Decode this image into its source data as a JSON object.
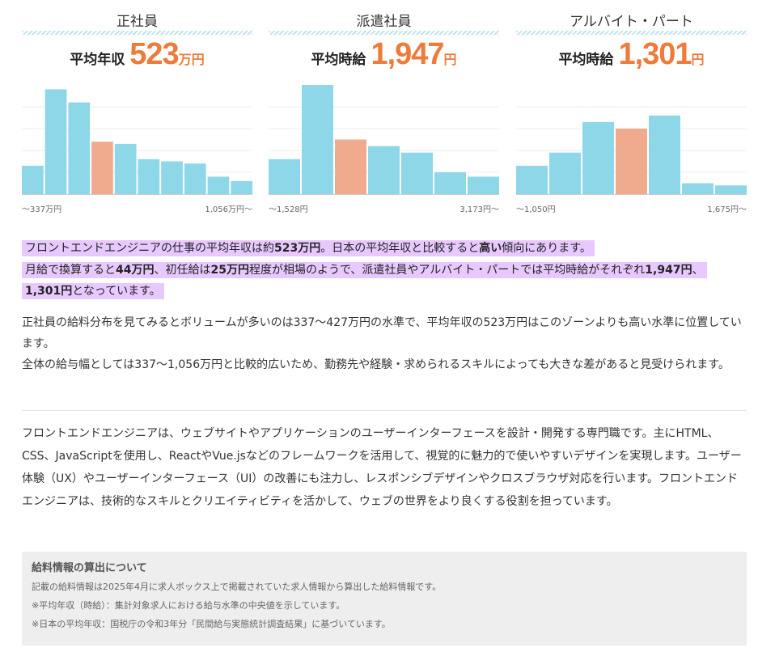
{
  "colors": {
    "bar": "#8dd7e9",
    "highlight_bar": "#f0aa8e",
    "accent": "#ee7b3a",
    "grid": "#eeeeee",
    "axis": "#cccccc"
  },
  "chart_data": [
    {
      "type": "bar",
      "title": "正社員",
      "avg_label": "平均年収",
      "avg_value": "523",
      "avg_unit": "万円",
      "values": [
        13,
        48,
        42,
        24,
        23,
        16,
        15,
        14,
        8,
        6
      ],
      "highlight_index": 3,
      "axis_min_label": "〜337万円",
      "axis_max_label": "1,056万円〜",
      "grid": true
    },
    {
      "type": "bar",
      "title": "派遣社員",
      "avg_label": "平均時給",
      "avg_value": "1,947",
      "avg_unit": "円",
      "values": [
        16,
        50,
        25,
        22,
        19,
        10,
        8
      ],
      "highlight_index": 2,
      "axis_min_label": "〜1,528円",
      "axis_max_label": "3,173円〜",
      "grid": true
    },
    {
      "type": "bar",
      "title": "アルバイト・パート",
      "avg_label": "平均時給",
      "avg_value": "1,301",
      "avg_unit": "円",
      "values": [
        13,
        19,
        33,
        30,
        36,
        5,
        4
      ],
      "highlight_index": 3,
      "axis_min_label": "〜1,050円",
      "axis_max_label": "1,675円〜",
      "grid": true
    }
  ],
  "highlight": {
    "l1_a": "フロントエンドエンジニアの仕事の平均年収は約",
    "l1_b": "523万円",
    "l1_c": "。日本の平均年収と比較すると",
    "l1_d": "高い",
    "l1_e": "傾向にあります。",
    "l2_a": "月給で換算すると",
    "l2_b": "44万円",
    "l2_c": "、初任給は",
    "l2_d": "25万円",
    "l2_e": "程度が相場のようで、派遣社員やアルバイト・パートでは平均時給がそれぞれ",
    "l2_f": "1,947円",
    "l2_g": "、",
    "l3_a": "1,301円",
    "l3_b": "となっています。"
  },
  "paragraph": {
    "line1": "正社員の給料分布を見てみるとボリュームが多いのは337〜427万円の水準で、平均年収の523万円はこのゾーンよりも高い水準に位置しています。",
    "line2": "全体の給与幅としては337〜1,056万円と比較的広いため、勤務先や経験・求められるスキルによっても大きな差があると見受けられます。"
  },
  "description": "フロントエンドエンジニアは、ウェブサイトやアプリケーションのユーザーインターフェースを設計・開発する専門職です。主にHTML、CSS、JavaScriptを使用し、ReactやVue.jsなどのフレームワークを活用して、視覚的に魅力的で使いやすいデザインを実現します。ユーザー体験（UX）やユーザーインターフェース（UI）の改善にも注力し、レスポンシブデザインやクロスブラウザ対応を行います。フロントエンドエンジニアは、技術的なスキルとクリエイティビティを活かして、ウェブの世界をより良くする役割を担っています。",
  "note": {
    "title": "給料情報の算出について",
    "line1": "記載の給料情報は2025年4月に求人ボックス上で掲載されていた求人情報から算出した給料情報です。",
    "line2": "※平均年収（時給）：集計対象求人における給与水準の中央値を示しています。",
    "line3": "※日本の平均年収：国税庁の令和3年分「民間給与実態統計調査結果」に基づいています。"
  }
}
